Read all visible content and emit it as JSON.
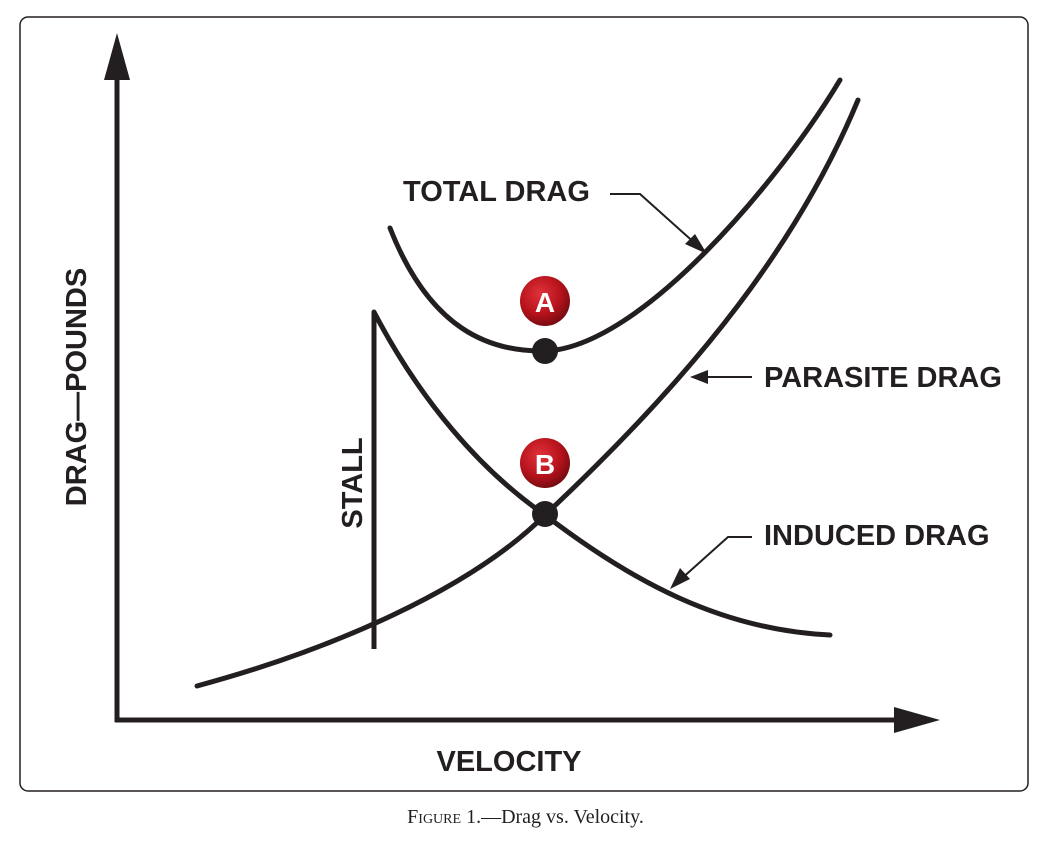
{
  "diagram": {
    "y_axis_label": "DRAG—POUNDS",
    "x_axis_label": "VELOCITY",
    "curves": {
      "total_drag": "TOTAL DRAG",
      "parasite_drag": "PARASITE DRAG",
      "induced_drag": "INDUCED DRAG"
    },
    "stall_label": "STALL",
    "markers": {
      "a": "A",
      "b": "B"
    },
    "colors": {
      "line": "#231f20",
      "badge": "#b5121b"
    }
  },
  "caption": {
    "figure_word": "Figure",
    "text": "1.—Drag vs. Velocity."
  }
}
